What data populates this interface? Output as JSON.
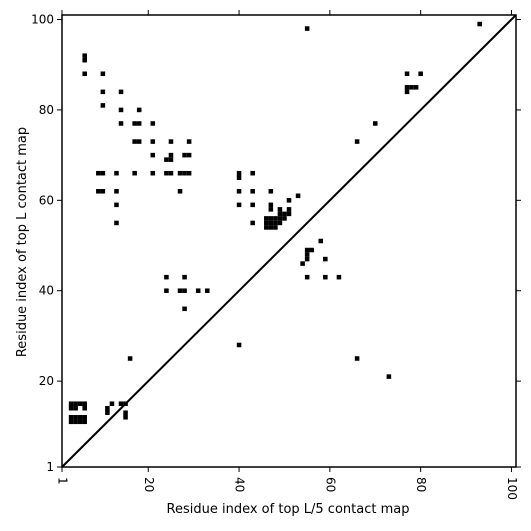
{
  "chart_data": {
    "type": "scatter",
    "title": "",
    "xlabel": "Residue index of top L/5 contact map",
    "ylabel": "Residue index of top L contact map",
    "xlim": [
      1,
      101
    ],
    "ylim": [
      1,
      101
    ],
    "xticks": [
      1,
      20,
      40,
      60,
      80,
      100
    ],
    "yticks": [
      1,
      20,
      40,
      60,
      80,
      100
    ],
    "tick_labels_x": [
      "1",
      "20",
      "40",
      "60",
      "80",
      "100"
    ],
    "tick_labels_y": [
      "1",
      "20",
      "40",
      "60",
      "80",
      "100"
    ],
    "grid": false,
    "diagonal_line": [
      [
        1,
        1
      ],
      [
        101,
        101
      ]
    ],
    "marker": "square",
    "marker_color": "#000000",
    "series": [
      {
        "points": [
          [
            55,
            98
          ],
          [
            93,
            99
          ],
          [
            6,
            92
          ],
          [
            6,
            91
          ],
          [
            6,
            88
          ],
          [
            10,
            88
          ],
          [
            10,
            84
          ],
          [
            14,
            84
          ],
          [
            10,
            81
          ],
          [
            14,
            80
          ],
          [
            18,
            80
          ],
          [
            14,
            77
          ],
          [
            17,
            77
          ],
          [
            18,
            77
          ],
          [
            21,
            77
          ],
          [
            17,
            73
          ],
          [
            18,
            73
          ],
          [
            21,
            73
          ],
          [
            25,
            73
          ],
          [
            29,
            73
          ],
          [
            21,
            70
          ],
          [
            24,
            69
          ],
          [
            25,
            69
          ],
          [
            25,
            70
          ],
          [
            28,
            70
          ],
          [
            29,
            70
          ],
          [
            9,
            66
          ],
          [
            10,
            66
          ],
          [
            13,
            66
          ],
          [
            17,
            66
          ],
          [
            21,
            66
          ],
          [
            24,
            66
          ],
          [
            25,
            66
          ],
          [
            27,
            66
          ],
          [
            28,
            66
          ],
          [
            29,
            66
          ],
          [
            40,
            66
          ],
          [
            40,
            65
          ],
          [
            43,
            66
          ],
          [
            77,
            88
          ],
          [
            80,
            88
          ],
          [
            77,
            85
          ],
          [
            78,
            85
          ],
          [
            79,
            85
          ],
          [
            77,
            84
          ],
          [
            70,
            77
          ],
          [
            66,
            73
          ],
          [
            9,
            62
          ],
          [
            10,
            62
          ],
          [
            13,
            62
          ],
          [
            27,
            62
          ],
          [
            40,
            62
          ],
          [
            43,
            62
          ],
          [
            47,
            62
          ],
          [
            13,
            59
          ],
          [
            40,
            59
          ],
          [
            43,
            59
          ],
          [
            47,
            59
          ],
          [
            47,
            58
          ],
          [
            51,
            60
          ],
          [
            53,
            61
          ],
          [
            13,
            55
          ],
          [
            43,
            55
          ],
          [
            46,
            55
          ],
          [
            47,
            55
          ],
          [
            48,
            55
          ],
          [
            49,
            55
          ],
          [
            46,
            54
          ],
          [
            47,
            54
          ],
          [
            48,
            54
          ],
          [
            49,
            56
          ],
          [
            50,
            56
          ],
          [
            50,
            57
          ],
          [
            51,
            57
          ],
          [
            51,
            58
          ],
          [
            49,
            57
          ],
          [
            48,
            56
          ],
          [
            47,
            56
          ],
          [
            46,
            56
          ],
          [
            49,
            58
          ],
          [
            58,
            51
          ],
          [
            55,
            49
          ],
          [
            56,
            49
          ],
          [
            55,
            48
          ],
          [
            55,
            47
          ],
          [
            54,
            46
          ],
          [
            59,
            47
          ],
          [
            24,
            43
          ],
          [
            28,
            43
          ],
          [
            55,
            43
          ],
          [
            59,
            43
          ],
          [
            62,
            43
          ],
          [
            24,
            40
          ],
          [
            27,
            40
          ],
          [
            28,
            40
          ],
          [
            31,
            40
          ],
          [
            33,
            40
          ],
          [
            28,
            36
          ],
          [
            40,
            28
          ],
          [
            16,
            25
          ],
          [
            66,
            25
          ],
          [
            73,
            21
          ],
          [
            3,
            15
          ],
          [
            4,
            15
          ],
          [
            5,
            15
          ],
          [
            6,
            15
          ],
          [
            3,
            14
          ],
          [
            4,
            14
          ],
          [
            6,
            14
          ],
          [
            3,
            12
          ],
          [
            4,
            12
          ],
          [
            5,
            12
          ],
          [
            6,
            12
          ],
          [
            3,
            11
          ],
          [
            4,
            11
          ],
          [
            5,
            11
          ],
          [
            6,
            11
          ],
          [
            11,
            14
          ],
          [
            11,
            13
          ],
          [
            12,
            15
          ],
          [
            14,
            15
          ],
          [
            15,
            15
          ],
          [
            15,
            13
          ],
          [
            15,
            12
          ]
        ]
      }
    ]
  }
}
